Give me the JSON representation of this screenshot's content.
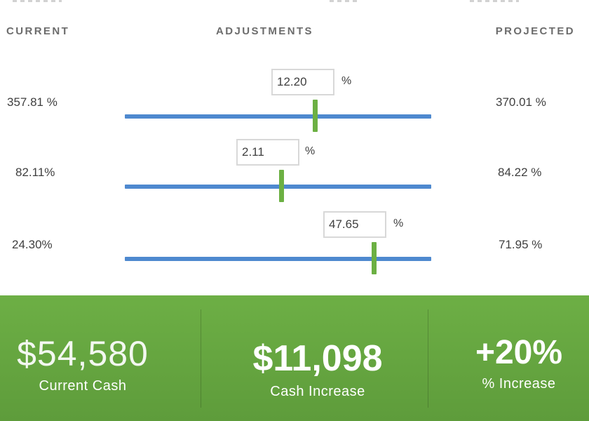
{
  "headers": {
    "current": "CURRENT",
    "adjustments": "ADJUSTMENTS",
    "projected": "PROJECTED"
  },
  "rows": [
    {
      "current": "357.81 %",
      "adjustment": "12.20",
      "unit": "%",
      "projected": "370.01 %",
      "slider_fraction": 0.62
    },
    {
      "current": "82.11%",
      "adjustment": "2.11",
      "unit": "%",
      "projected": "84.22 %",
      "slider_fraction": 0.51
    },
    {
      "current": "24.30%",
      "adjustment": "47.65",
      "unit": "%",
      "projected": "71.95 %",
      "slider_fraction": 0.81
    }
  ],
  "summary": {
    "current_cash": {
      "value": "$54,580",
      "label": "Current Cash"
    },
    "cash_increase": {
      "value": "$11,098",
      "label": "Cash Increase"
    },
    "percent_increase": {
      "value": "+20%",
      "label": "% Increase"
    }
  },
  "colors": {
    "track": "#4e89cf",
    "thumb": "#6cb043",
    "footer": "#63a43f"
  }
}
